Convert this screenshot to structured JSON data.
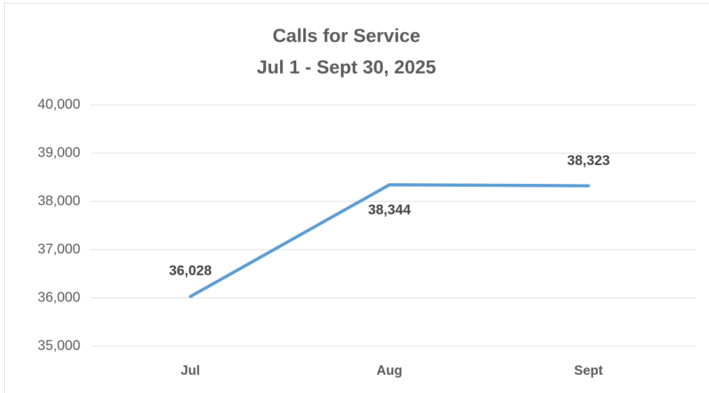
{
  "chart_data": {
    "type": "line",
    "title": "Calls for Service",
    "subtitle": "Jul 1 - Sept 30, 2025",
    "categories": [
      "Jul",
      "Aug",
      "Sept"
    ],
    "series": [
      {
        "name": "Calls for Service",
        "color": "#5b9bd5",
        "values": [
          36028,
          38344,
          38323
        ],
        "value_labels": [
          "36,028",
          "38,344",
          "38,323"
        ]
      }
    ],
    "ylim": [
      35000,
      40000
    ],
    "yticks": [
      {
        "value": 35000,
        "label": "35,000"
      },
      {
        "value": 36000,
        "label": "36,000"
      },
      {
        "value": 37000,
        "label": "37,000"
      },
      {
        "value": 38000,
        "label": "38,000"
      },
      {
        "value": 39000,
        "label": "39,000"
      },
      {
        "value": 40000,
        "label": "40,000"
      }
    ],
    "grid": true
  }
}
